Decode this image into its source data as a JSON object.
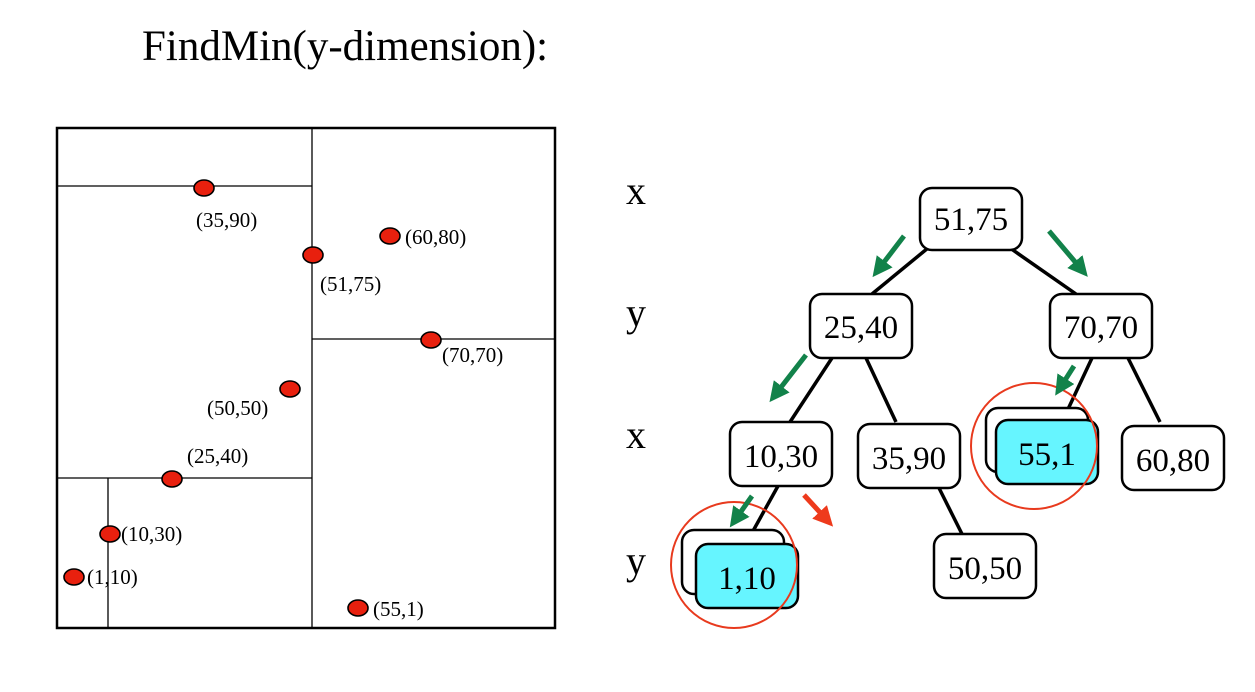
{
  "title": "FindMin(y-dimension):",
  "colors": {
    "point": "#e8200e",
    "highlight_node": "#66f5ff",
    "green_arrow": "#12824a",
    "red_arrow": "#ee3a1c",
    "circle": "#e83a1e"
  },
  "points": [
    {
      "id": "p35_90",
      "label": "(35,90)"
    },
    {
      "id": "p60_80",
      "label": "(60,80)"
    },
    {
      "id": "p51_75",
      "label": "(51,75)"
    },
    {
      "id": "p70_70",
      "label": "(70,70)"
    },
    {
      "id": "p50_50",
      "label": "(50,50)"
    },
    {
      "id": "p25_40",
      "label": "(25,40)"
    },
    {
      "id": "p10_30",
      "label": "(10,30)"
    },
    {
      "id": "p1_10",
      "label": "(1,10)"
    },
    {
      "id": "p55_1",
      "label": "(55,1)"
    }
  ],
  "levels": [
    "x",
    "y",
    "x",
    "y"
  ],
  "nodes": [
    {
      "id": "n51_75",
      "label": "51,75",
      "highlight": false
    },
    {
      "id": "n25_40",
      "label": "25,40",
      "highlight": false
    },
    {
      "id": "n70_70",
      "label": "70,70",
      "highlight": false
    },
    {
      "id": "n10_30",
      "label": "10,30",
      "highlight": false
    },
    {
      "id": "n35_90",
      "label": "35,90",
      "highlight": false
    },
    {
      "id": "n55_1",
      "label": "55,1",
      "highlight": true
    },
    {
      "id": "n60_80",
      "label": "60,80",
      "highlight": false
    },
    {
      "id": "n1_10",
      "label": "1,10",
      "highlight": true
    },
    {
      "id": "n50_50",
      "label": "50,50",
      "highlight": false
    }
  ]
}
